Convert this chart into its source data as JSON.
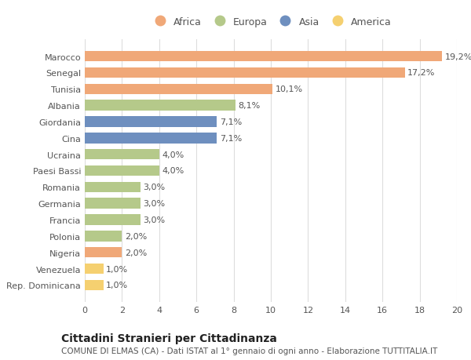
{
  "categories": [
    "Rep. Dominicana",
    "Venezuela",
    "Nigeria",
    "Polonia",
    "Francia",
    "Germania",
    "Romania",
    "Paesi Bassi",
    "Ucraina",
    "Cina",
    "Giordania",
    "Albania",
    "Tunisia",
    "Senegal",
    "Marocco"
  ],
  "values": [
    1.0,
    1.0,
    2.0,
    2.0,
    3.0,
    3.0,
    3.0,
    4.0,
    4.0,
    7.1,
    7.1,
    8.1,
    10.1,
    17.2,
    19.2
  ],
  "labels": [
    "1,0%",
    "1,0%",
    "2,0%",
    "2,0%",
    "3,0%",
    "3,0%",
    "3,0%",
    "4,0%",
    "4,0%",
    "7,1%",
    "7,1%",
    "8,1%",
    "10,1%",
    "17,2%",
    "19,2%"
  ],
  "continents": [
    "America",
    "America",
    "Africa",
    "Europa",
    "Europa",
    "Europa",
    "Europa",
    "Europa",
    "Europa",
    "Asia",
    "Asia",
    "Europa",
    "Africa",
    "Africa",
    "Africa"
  ],
  "colors": {
    "Africa": "#F0A878",
    "Europa": "#B5C98A",
    "Asia": "#6E8FBF",
    "America": "#F5D070"
  },
  "legend_order": [
    "Africa",
    "Europa",
    "Asia",
    "America"
  ],
  "legend_colors": {
    "Africa": "#F0A878",
    "Europa": "#B5C98A",
    "Asia": "#6E8FBF",
    "America": "#F5D070"
  },
  "xlim": [
    0,
    20
  ],
  "xticks": [
    0,
    2,
    4,
    6,
    8,
    10,
    12,
    14,
    16,
    18,
    20
  ],
  "title": "Cittadini Stranieri per Cittadinanza",
  "subtitle": "COMUNE DI ELMAS (CA) - Dati ISTAT al 1° gennaio di ogni anno - Elaborazione TUTTITALIA.IT",
  "background_color": "#ffffff",
  "bar_height": 0.65,
  "grid_color": "#dddddd",
  "text_color": "#555555",
  "label_fontsize": 8,
  "tick_fontsize": 8,
  "title_fontsize": 10,
  "subtitle_fontsize": 7.5
}
